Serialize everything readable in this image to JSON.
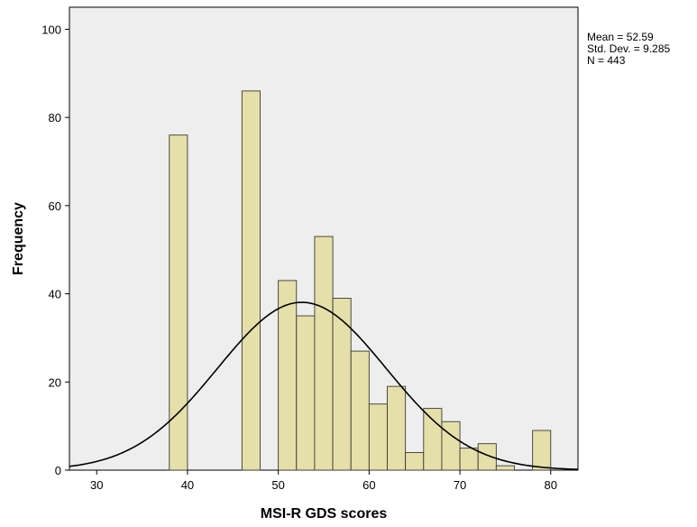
{
  "chart_data": {
    "type": "bar",
    "subtype": "histogram",
    "xlabel": "MSI-R GDS scores",
    "ylabel": "Frequency",
    "xlim": [
      27,
      83
    ],
    "ylim": [
      0,
      105
    ],
    "x_ticks": [
      "30",
      "40",
      "50",
      "60",
      "70",
      "80"
    ],
    "y_ticks": [
      "0",
      "20",
      "40",
      "60",
      "80",
      "100"
    ],
    "bin_width": 2,
    "bins": [
      {
        "start": 38,
        "end": 40,
        "value": 76
      },
      {
        "start": 46,
        "end": 48,
        "value": 86
      },
      {
        "start": 50,
        "end": 52,
        "value": 43
      },
      {
        "start": 52,
        "end": 54,
        "value": 35
      },
      {
        "start": 54,
        "end": 56,
        "value": 53
      },
      {
        "start": 56,
        "end": 58,
        "value": 39
      },
      {
        "start": 58,
        "end": 60,
        "value": 27
      },
      {
        "start": 60,
        "end": 62,
        "value": 15
      },
      {
        "start": 62,
        "end": 64,
        "value": 19
      },
      {
        "start": 64,
        "end": 66,
        "value": 4
      },
      {
        "start": 66,
        "end": 68,
        "value": 14
      },
      {
        "start": 68,
        "end": 70,
        "value": 11
      },
      {
        "start": 70,
        "end": 72,
        "value": 5
      },
      {
        "start": 72,
        "end": 74,
        "value": 6
      },
      {
        "start": 74,
        "end": 76,
        "value": 1
      },
      {
        "start": 78,
        "end": 80,
        "value": 9
      }
    ],
    "normal_curve": {
      "mean": 52.59,
      "sd": 9.285,
      "n": 443
    },
    "stats_text": [
      "Mean = 52.59",
      "Std. Dev. = 9.285",
      "N = 443"
    ],
    "grid": false,
    "colors": {
      "bar_fill": "#e5dfaa",
      "bar_stroke": "#3a3a30",
      "plot_background": "#eeeeee",
      "curve": "#000000"
    }
  }
}
